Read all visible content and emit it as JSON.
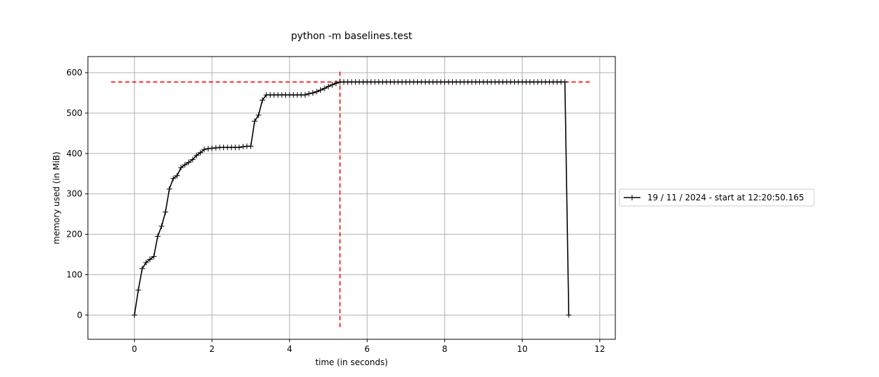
{
  "chart_data": {
    "type": "line",
    "title": "python -m baselines.test",
    "xlabel": "time (in seconds)",
    "ylabel": "memory used (in MiB)",
    "xlim": [
      -1.2,
      12.4
    ],
    "ylim": [
      -60,
      640
    ],
    "xticks": [
      0,
      2,
      4,
      6,
      8,
      10,
      12
    ],
    "xtick_labels": [
      "0",
      "2",
      "4",
      "6",
      "8",
      "10",
      "12"
    ],
    "yticks": [
      0,
      100,
      200,
      300,
      400,
      500,
      600
    ],
    "ytick_labels": [
      "0",
      "100",
      "200",
      "300",
      "400",
      "500",
      "600"
    ],
    "grid": true,
    "legend_position": "outside-right",
    "series": [
      {
        "name": "19 / 11 / 2024 - start at 12:20:50.165",
        "color": "#000000",
        "marker": "+",
        "x": [
          0.0,
          0.1,
          0.2,
          0.3,
          0.4,
          0.5,
          0.6,
          0.7,
          0.8,
          0.9,
          1.0,
          1.1,
          1.2,
          1.3,
          1.4,
          1.5,
          1.6,
          1.7,
          1.8,
          1.9,
          2.0,
          2.1,
          2.2,
          2.3,
          2.4,
          2.5,
          2.6,
          2.7,
          2.8,
          2.9,
          3.0,
          3.1,
          3.2,
          3.3,
          3.4,
          3.5,
          3.6,
          3.7,
          3.8,
          3.9,
          4.0,
          4.1,
          4.2,
          4.3,
          4.4,
          4.5,
          4.6,
          4.7,
          4.8,
          4.9,
          5.0,
          5.1,
          5.2,
          5.3,
          5.4,
          5.5,
          5.6,
          5.7,
          5.8,
          5.9,
          6.0,
          6.1,
          6.2,
          6.3,
          6.4,
          6.5,
          6.6,
          6.7,
          6.8,
          6.9,
          7.0,
          7.1,
          7.2,
          7.3,
          7.4,
          7.5,
          7.6,
          7.7,
          7.8,
          7.9,
          8.0,
          8.1,
          8.2,
          8.3,
          8.4,
          8.5,
          8.6,
          8.7,
          8.8,
          8.9,
          9.0,
          9.1,
          9.2,
          9.3,
          9.4,
          9.5,
          9.6,
          9.7,
          9.8,
          9.9,
          10.0,
          10.1,
          10.2,
          10.3,
          10.4,
          10.5,
          10.6,
          10.7,
          10.8,
          10.9,
          11.0,
          11.1,
          11.2
        ],
        "y": [
          0,
          62,
          115,
          130,
          138,
          145,
          195,
          220,
          255,
          312,
          338,
          345,
          365,
          372,
          378,
          385,
          395,
          402,
          410,
          412,
          413,
          414,
          415,
          415,
          415,
          415,
          415,
          415,
          417,
          418,
          418,
          480,
          495,
          532,
          545,
          545,
          545,
          545,
          545,
          545,
          545,
          545,
          545,
          545,
          545,
          548,
          550,
          553,
          557,
          561,
          566,
          570,
          574,
          577,
          577,
          577,
          577,
          577,
          577,
          577,
          577,
          577,
          577,
          577,
          577,
          577,
          577,
          577,
          577,
          577,
          577,
          577,
          577,
          577,
          577,
          577,
          577,
          577,
          577,
          577,
          577,
          577,
          577,
          577,
          577,
          577,
          577,
          577,
          577,
          577,
          577,
          577,
          577,
          577,
          577,
          577,
          577,
          577,
          577,
          577,
          577,
          577,
          577,
          577,
          577,
          577,
          577,
          577,
          577,
          577,
          577,
          577,
          0
        ]
      }
    ],
    "reference_lines": [
      {
        "orientation": "horizontal",
        "value": 577,
        "from": -0.6,
        "to": 11.8,
        "color": "#ff0000",
        "style": "dashed"
      },
      {
        "orientation": "vertical",
        "value": 5.3,
        "from": -30,
        "to": 608,
        "color": "#ff0000",
        "style": "dashed"
      }
    ]
  }
}
